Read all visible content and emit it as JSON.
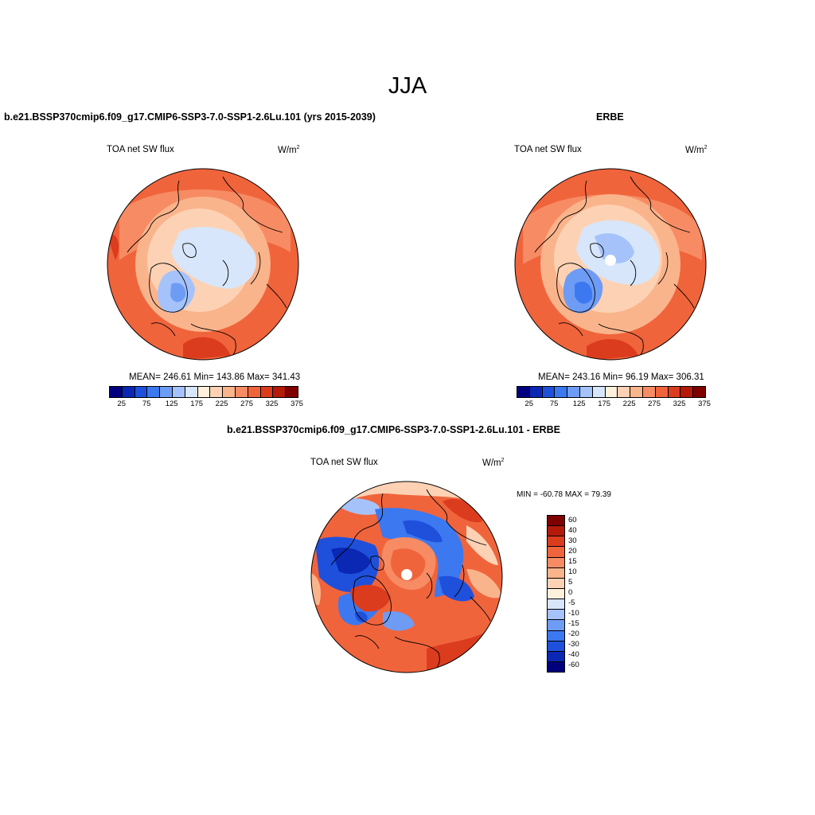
{
  "title": "JJA",
  "panels": [
    {
      "heading": "b.e21.BSSP370cmip6.f09_g17.CMIP6-SSP3-7.0-SSP1-2.6Lu.101 (yrs 2015-2039)",
      "variable": "TOA net SW flux",
      "units_base": "W/m",
      "units_exp": "2",
      "stats": "MEAN= 246.61  Min= 143.86  Max= 341.43"
    },
    {
      "heading": "ERBE",
      "variable": "TOA net SW flux",
      "units_base": "W/m",
      "units_exp": "2",
      "stats": "MEAN= 243.16  Min=  96.19  Max= 306.31"
    },
    {
      "heading": "b.e21.BSSP370cmip6.f09_g17.CMIP6-SSP3-7.0-SSP1-2.6Lu.101 - ERBE",
      "variable": "TOA net SW flux",
      "units_base": "W/m",
      "units_exp": "2",
      "stats": "MIN = -60.78 MAX =  79.39"
    }
  ],
  "abs_colorbar": {
    "colors": [
      "#00007f",
      "#0a28b4",
      "#1e50dc",
      "#3c78f0",
      "#6e9cf5",
      "#a5c3fa",
      "#d7e6fa",
      "#fff0dc",
      "#fdd2b4",
      "#fab48c",
      "#f78c64",
      "#f0643c",
      "#dc3c1e",
      "#b4190a",
      "#7f0000"
    ],
    "labels": [
      "25",
      "75",
      "125",
      "175",
      "225",
      "275",
      "325",
      "375"
    ]
  },
  "diff_colorbar": {
    "colors_top_to_bottom": [
      "#7f0000",
      "#b4190a",
      "#dc3c1e",
      "#f0643c",
      "#f78c64",
      "#fab48c",
      "#fdd2b4",
      "#fff0dc",
      "#d7e6fa",
      "#a5c3fa",
      "#6e9cf5",
      "#3c78f0",
      "#1e50dc",
      "#0a28b4",
      "#00007f"
    ],
    "labels_top_to_bottom": [
      "60",
      "40",
      "30",
      "20",
      "15",
      "10",
      "5",
      "0",
      "-5",
      "-10",
      "-15",
      "-20",
      "-30",
      "-40",
      "-60"
    ]
  }
}
